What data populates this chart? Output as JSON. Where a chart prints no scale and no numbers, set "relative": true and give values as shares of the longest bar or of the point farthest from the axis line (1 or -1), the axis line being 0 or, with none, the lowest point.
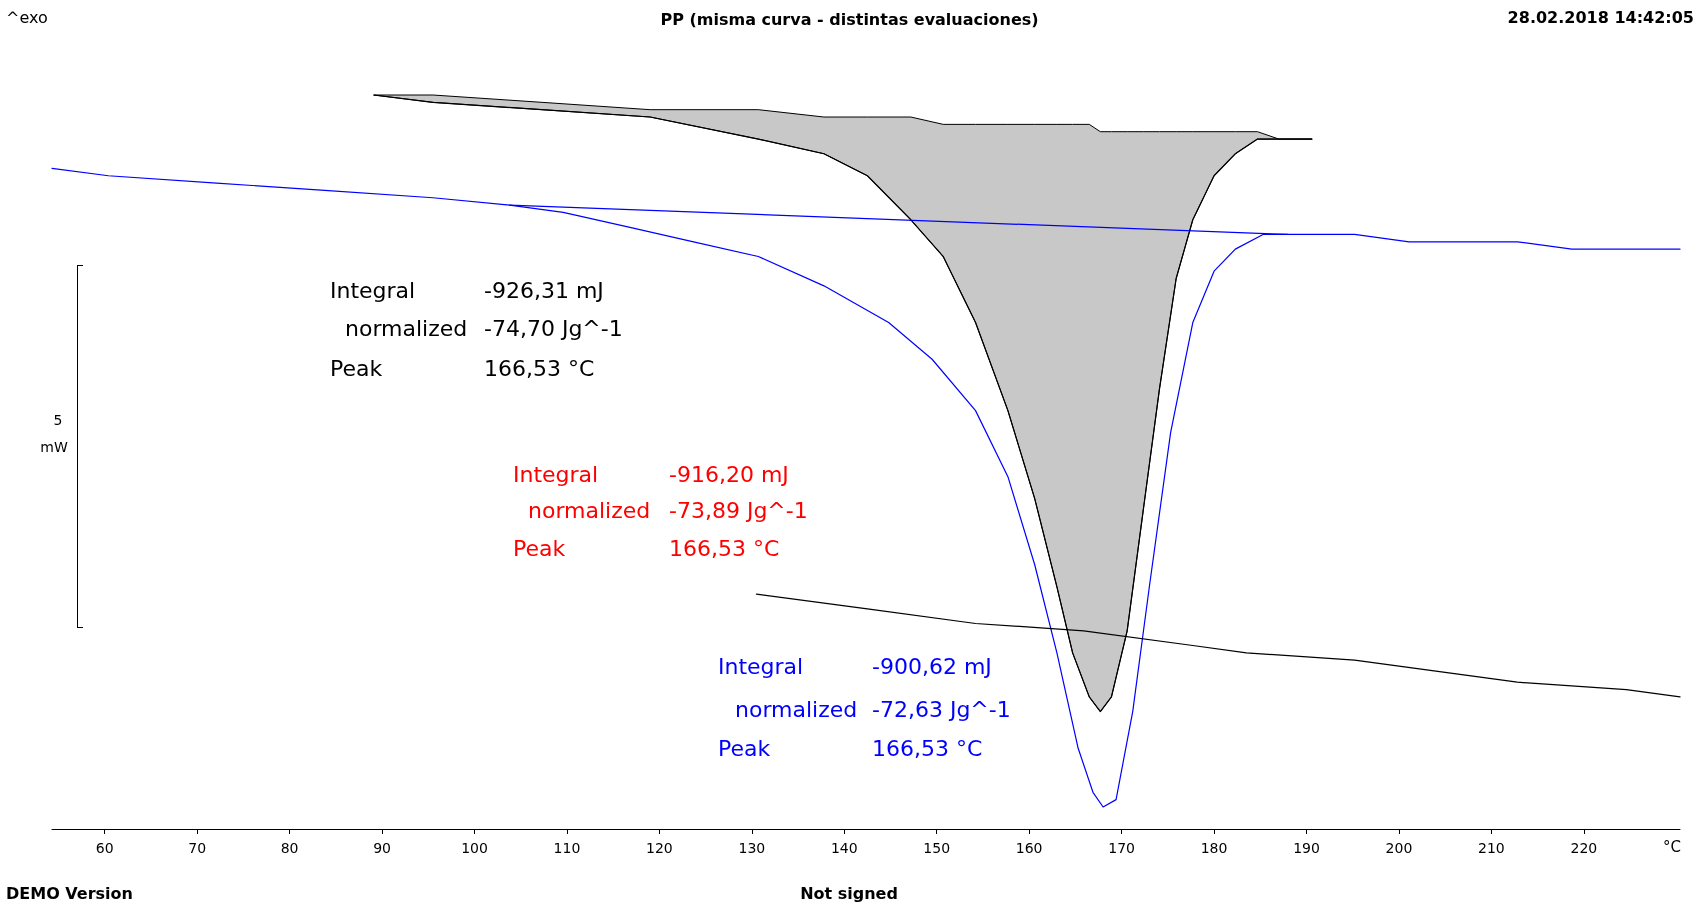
{
  "chart_data": {
    "type": "line",
    "title": "PP (misma curva - distintas evaluaciones)",
    "xlabel": "°C",
    "relative": true,
    "tick_labels": "x",
    "xlim": [
      54.3,
      230.4
    ],
    "xticks": [
      60,
      70,
      80,
      90,
      100,
      110,
      120,
      130,
      140,
      150,
      160,
      170,
      180,
      190,
      200,
      210,
      220
    ],
    "annotations": [
      "^exo",
      "28.02.2018 14:42:05",
      "DEMO Version",
      "Not signed",
      "5",
      "mW",
      "Integral",
      "-926,31 mJ",
      "normalized",
      "-74,70 Jg^-1",
      "Peak",
      "166,53 °C",
      "Integral",
      "-916,20 mJ",
      "normalized",
      "-73,89 Jg^-1",
      "Peak",
      "166,53 °C",
      "Integral",
      "-900,62 mJ",
      "normalized",
      "-72,63 Jg^-1",
      "Peak",
      "166,53 °C"
    ],
    "series": [
      {
        "color": "#0000ff",
        "x": [
          54.3,
          60.4,
          72.1,
          83.8,
          95.5,
          103.8,
          109.6,
          116.7,
          123.7,
          130.7,
          137.8,
          144.8,
          149.5,
          154.2,
          157.7,
          160.6,
          163.0,
          165.3,
          166.9,
          168.0,
          169.4,
          171.2,
          173.0,
          175.3,
          177.7,
          180.0,
          182.3,
          185.3,
          188.0,
          195.2,
          201.1,
          212.8,
          218.7,
          224.6,
          230.4
        ],
        "values": [
          0.9,
          0.89,
          0.88,
          0.87,
          0.86,
          0.85,
          0.84,
          0.82,
          0.8,
          0.78,
          0.74,
          0.69,
          0.64,
          0.57,
          0.48,
          0.36,
          0.24,
          0.11,
          0.05,
          0.03,
          0.04,
          0.16,
          0.33,
          0.54,
          0.69,
          0.76,
          0.79,
          0.81,
          0.81,
          0.81,
          0.8,
          0.8,
          0.79,
          0.79,
          0.79
        ]
      },
      {
        "color": "#0000ff",
        "x": [
          103.8,
          188.0
        ],
        "values": [
          0.85,
          0.81
        ]
      },
      {
        "color": "#000000",
        "x": [
          130.5,
          142.5,
          154.2,
          165.9,
          177.7,
          183.5,
          195.2,
          207.0,
          212.8,
          224.6,
          230.4
        ],
        "values": [
          0.32,
          0.3,
          0.28,
          0.27,
          0.25,
          0.24,
          0.23,
          0.21,
          0.2,
          0.19,
          0.18
        ]
      },
      {
        "color": "#000000",
        "x": [
          89.1,
          95.5,
          107.3,
          119.0,
          130.7,
          137.8,
          142.5,
          147.2,
          150.7,
          154.2,
          157.7,
          160.6,
          163.0,
          164.7,
          166.5,
          167.7,
          168.9,
          170.6,
          172.4,
          174.1,
          175.9,
          177.7,
          180.0,
          182.3,
          184.7,
          187.0,
          190.6
        ],
        "values": [
          1.0,
          0.99,
          0.98,
          0.97,
          0.94,
          0.92,
          0.89,
          0.83,
          0.78,
          0.69,
          0.57,
          0.45,
          0.33,
          0.24,
          0.18,
          0.16,
          0.18,
          0.27,
          0.44,
          0.6,
          0.75,
          0.83,
          0.89,
          0.92,
          0.94,
          0.94,
          0.94
        ],
        "lower": [
          1.0,
          0.99,
          0.98,
          0.97,
          0.94,
          0.92,
          0.89,
          0.83,
          0.78,
          0.69,
          0.57,
          0.45,
          0.33,
          0.24,
          0.18,
          0.16,
          0.18,
          0.27,
          0.44,
          0.6,
          0.75,
          0.83,
          0.89,
          0.92,
          0.94,
          0.94,
          0.94
        ],
        "upper": [
          1.0,
          1.0,
          0.99,
          0.98,
          0.98,
          0.97,
          0.97,
          0.97,
          0.96,
          0.96,
          0.96,
          0.96,
          0.96,
          0.96,
          0.96,
          0.95,
          0.95,
          0.95,
          0.95,
          0.95,
          0.95,
          0.95,
          0.95,
          0.95,
          0.95,
          0.94,
          0.94
        ]
      }
    ]
  }
}
